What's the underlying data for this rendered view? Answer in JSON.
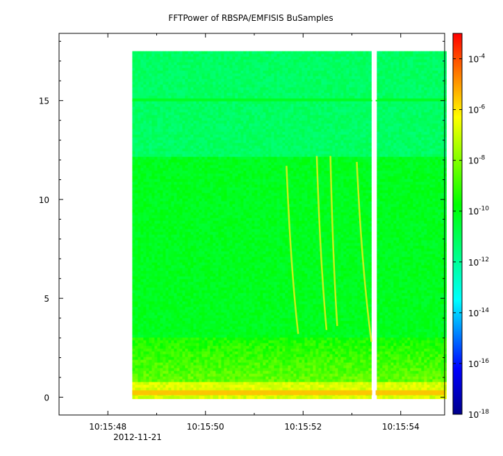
{
  "chart_data": {
    "type": "heatmap",
    "title": "FFTPower of RBSPA/EMFISIS  BuSamples",
    "xlabel": "",
    "ylabel": "",
    "x_ticks": [
      "10:15:48",
      "10:15:50",
      "10:15:52",
      "10:15:54"
    ],
    "x_sublabel": "2012-11-21",
    "x_range_seconds_after_10:15:48": [
      -1,
      6.9
    ],
    "data_x_start": "10:15:48.5",
    "gap_at": "10:15:53.45",
    "y_ticks": [
      0,
      5,
      10,
      15
    ],
    "ylim": [
      -0.9,
      18.4
    ],
    "data_y_range": [
      0,
      17.5
    ],
    "colorbar": {
      "scale": "log",
      "range": [
        1e-18,
        0.001
      ],
      "tick_bases": [
        "10",
        "10",
        "10",
        "10",
        "10",
        "10",
        "10",
        "10"
      ],
      "tick_exponents": [
        "-4",
        "-6",
        "-8",
        "-10",
        "-12",
        "-14",
        "-16",
        "-18"
      ],
      "colormap": [
        "#00008b",
        "#0000ff",
        "#00ffff",
        "#00ff00",
        "#ffff00",
        "#ff0000"
      ]
    },
    "features": {
      "horizontal_line_at": 15,
      "bands": [
        {
          "from": 12.2,
          "to": 17.5,
          "log_power": -11.2
        },
        {
          "from": 3,
          "to": 12.2,
          "log_power": -10.2
        },
        {
          "from": 0.8,
          "to": 3,
          "log_power": -8.8
        },
        {
          "from": 0,
          "to": 0.8,
          "log_power": -7
        }
      ],
      "streaks": [
        {
          "x_start": 3.66,
          "y_start": 11.7,
          "x_end": 3.9,
          "y_end": 3.2
        },
        {
          "x_start": 4.28,
          "y_start": 12.2,
          "x_end": 4.48,
          "y_end": 3.4
        },
        {
          "x_start": 4.56,
          "y_start": 12.2,
          "x_end": 4.7,
          "y_end": 3.6
        },
        {
          "x_start": 5.1,
          "y_start": 11.9,
          "x_end": 5.4,
          "y_end": 2.8
        }
      ]
    }
  }
}
